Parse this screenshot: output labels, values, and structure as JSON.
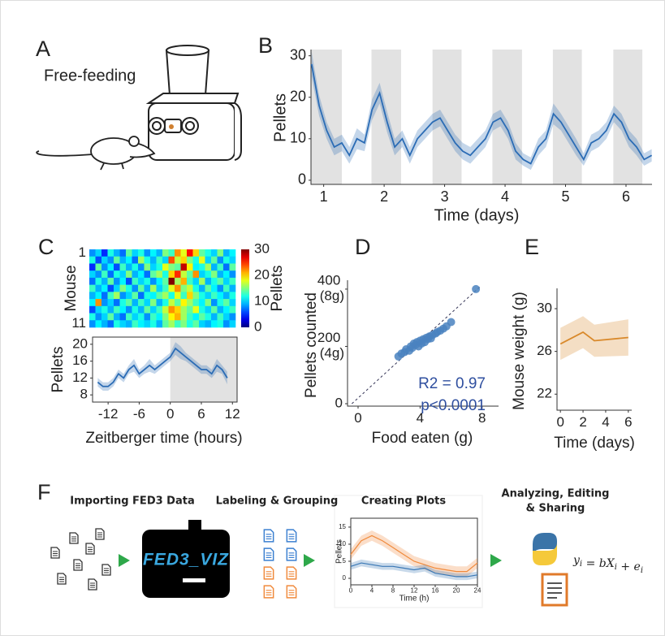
{
  "panel_labels": [
    "A",
    "B",
    "C",
    "D",
    "E",
    "F"
  ],
  "panel_a": {
    "caption": "Free-feeding"
  },
  "chart_data": [
    {
      "type": "line",
      "ylabel": "Pellets",
      "xlabel": "Time (days)",
      "x": [
        0.8,
        0.925,
        1.05,
        1.175,
        1.3,
        1.425,
        1.55,
        1.675,
        1.8,
        1.925,
        2.05,
        2.175,
        2.3,
        2.425,
        2.55,
        2.675,
        2.8,
        2.925,
        3.05,
        3.175,
        3.3,
        3.425,
        3.55,
        3.675,
        3.8,
        3.925,
        4.05,
        4.175,
        4.3,
        4.425,
        4.55,
        4.675,
        4.8,
        4.925,
        5.05,
        5.175,
        5.3,
        5.425,
        5.55,
        5.675,
        5.8,
        5.925,
        6.05,
        6.175,
        6.3,
        6.425
      ],
      "series": [
        {
          "color": "#2b6cb5",
          "values": [
            28,
            18,
            12,
            8,
            9,
            6,
            10,
            9,
            17,
            21,
            14,
            8,
            10,
            6,
            10,
            12,
            14,
            15,
            12,
            9,
            7,
            6,
            8,
            10,
            14,
            15,
            12,
            7,
            5,
            4,
            8,
            10,
            16,
            14,
            11,
            8,
            5,
            9,
            10,
            12,
            16,
            14,
            10,
            8,
            5,
            6
          ],
          "errors": [
            3,
            2.5,
            2,
            2,
            2,
            2,
            2.5,
            2,
            2.5,
            2.5,
            2.5,
            2,
            2,
            2,
            2,
            2,
            2,
            2,
            2,
            2,
            2,
            2,
            2,
            2,
            2,
            2,
            2,
            2,
            1.5,
            1.5,
            2,
            2,
            2.5,
            2,
            2,
            2,
            1.5,
            2,
            2,
            2,
            2,
            2,
            2,
            2,
            1.5,
            1.5
          ]
        }
      ],
      "shaded": [
        [
          0.79,
          1.3
        ],
        [
          1.79,
          2.28
        ],
        [
          2.8,
          3.28
        ],
        [
          3.79,
          4.28
        ],
        [
          4.79,
          5.27
        ],
        [
          5.79,
          6.27
        ]
      ],
      "xlim": [
        0.79,
        6.43
      ],
      "ylim": [
        -1,
        31.5
      ],
      "xticks": [
        1,
        2,
        3,
        4,
        5,
        6
      ],
      "yticks": [
        0,
        10,
        20,
        30
      ]
    },
    {
      "type": "heatmap",
      "ylabel": "Mouse",
      "categories": [
        "1",
        null,
        null,
        null,
        null,
        null,
        null,
        null,
        null,
        null,
        "11"
      ],
      "values": [
        [
          8,
          10,
          5,
          12,
          9,
          7,
          14,
          10,
          12,
          8,
          11,
          9,
          15,
          13,
          22,
          18,
          26,
          20,
          14,
          12,
          10,
          15,
          9,
          11
        ],
        [
          12,
          6,
          10,
          8,
          14,
          9,
          11,
          7,
          16,
          12,
          9,
          13,
          10,
          24,
          17,
          20,
          15,
          12,
          18,
          10,
          14,
          8,
          12,
          10
        ],
        [
          5,
          14,
          8,
          11,
          6,
          13,
          9,
          12,
          8,
          15,
          10,
          12,
          18,
          15,
          14,
          28,
          19,
          11,
          12,
          16,
          9,
          13,
          7,
          14
        ],
        [
          10,
          8,
          13,
          7,
          12,
          10,
          15,
          9,
          11,
          7,
          14,
          16,
          12,
          20,
          25,
          17,
          14,
          22,
          10,
          12,
          15,
          9,
          11,
          8
        ],
        [
          7,
          12,
          9,
          14,
          8,
          11,
          6,
          13,
          10,
          12,
          8,
          11,
          14,
          30,
          16,
          21,
          13,
          10,
          16,
          9,
          12,
          14,
          10,
          13
        ],
        [
          13,
          9,
          11,
          6,
          10,
          15,
          12,
          8,
          14,
          9,
          16,
          10,
          13,
          18,
          22,
          15,
          17,
          12,
          9,
          14,
          11,
          8,
          13,
          9
        ],
        [
          9,
          11,
          7,
          13,
          16,
          8,
          10,
          14,
          7,
          12,
          11,
          14,
          16,
          12,
          18,
          13,
          20,
          15,
          12,
          10,
          13,
          11,
          9,
          12
        ],
        [
          11,
          22,
          8,
          10,
          7,
          12,
          14,
          9,
          13,
          10,
          15,
          9,
          12,
          17,
          14,
          19,
          16,
          13,
          11,
          15,
          8,
          12,
          14,
          10
        ],
        [
          6,
          10,
          12,
          9,
          13,
          11,
          8,
          12,
          9,
          14,
          10,
          13,
          17,
          22,
          20,
          16,
          14,
          18,
          12,
          10,
          14,
          9,
          11,
          13
        ],
        [
          12,
          8,
          10,
          14,
          9,
          7,
          13,
          10,
          12,
          8,
          13,
          11,
          15,
          19,
          21,
          16,
          13,
          11,
          14,
          12,
          9,
          13,
          10,
          8
        ],
        [
          8,
          11,
          9,
          7,
          12,
          10,
          9,
          13,
          11,
          10,
          12,
          9,
          14,
          16,
          13,
          15,
          12,
          14,
          10,
          9,
          11,
          12,
          8,
          10
        ]
      ],
      "colormap": "jet",
      "zlim": [
        0,
        30
      ],
      "zticks": [
        0,
        10,
        20,
        30
      ],
      "colorbar_label": "Pellets"
    },
    {
      "type": "line",
      "ylabel": "Pellets",
      "xlabel": "Zeitberger time (hours)",
      "x": [
        -14,
        -13,
        -12,
        -11,
        -10,
        -9,
        -8,
        -7,
        -6,
        -5,
        -4,
        -3,
        -2,
        -1,
        0,
        1,
        2,
        3,
        4,
        5,
        6,
        7,
        8,
        9,
        10,
        11
      ],
      "series": [
        {
          "color": "#2b6cb5",
          "values": [
            11,
            10,
            10,
            11,
            13,
            12,
            14,
            15,
            13,
            14,
            15,
            14,
            15,
            16,
            17,
            19,
            18,
            17,
            16,
            15,
            14,
            14,
            13,
            15,
            14,
            12
          ],
          "errors": [
            1,
            1,
            1,
            1,
            1,
            1,
            1,
            1.5,
            1,
            1,
            1.5,
            1,
            1,
            1,
            1,
            1.5,
            1.5,
            1,
            1,
            1,
            1,
            1,
            1,
            1.5,
            1,
            1.5
          ]
        }
      ],
      "shaded": [
        [
          0,
          12.9
        ]
      ],
      "xlim": [
        -15,
        12.9
      ],
      "ylim": [
        6.3,
        21.7
      ],
      "xticks": [
        -12,
        -6,
        0,
        6,
        12
      ],
      "yticks": [
        8,
        12,
        16,
        20
      ]
    },
    {
      "type": "scatter",
      "ylabel": "Pellets counted",
      "xlabel": "Food eaten (g)",
      "x": [
        2.6,
        2.8,
        3.0,
        3.1,
        3.3,
        3.4,
        3.5,
        3.6,
        3.7,
        3.8,
        3.9,
        4.0,
        4.1,
        4.2,
        4.3,
        4.4,
        4.5,
        4.6,
        4.7,
        4.8,
        5.0,
        5.1,
        5.3,
        5.5,
        5.7,
        6.0,
        7.6
      ],
      "series": [
        {
          "color": "#4a82c0",
          "values": [
            165,
            175,
            180,
            190,
            185,
            200,
            195,
            210,
            205,
            215,
            200,
            220,
            210,
            225,
            215,
            230,
            225,
            235,
            228,
            240,
            245,
            250,
            255,
            262,
            270,
            285,
            400
          ]
        }
      ],
      "fit_line": {
        "x": [
          -0.4,
          7.9
        ],
        "y": [
          0,
          410
        ]
      },
      "annotations": [
        "R2 = 0.97",
        "p<0.0001"
      ],
      "annotation_color": "#2f4f9f",
      "xlim": [
        -0.68,
        9.06
      ],
      "ylim": [
        -8.5,
        431
      ],
      "xticks": [
        0,
        4,
        8
      ],
      "yticks": [
        0,
        {
          "value": 200,
          "label": "200 (4g)"
        },
        {
          "value": 400,
          "label": "400 (8g)"
        }
      ]
    },
    {
      "type": "line",
      "ylabel": "Mouse weight (g)",
      "xlabel": "Time (days)",
      "x": [
        0,
        2,
        3,
        6
      ],
      "series": [
        {
          "color": "#d9892b",
          "values": [
            26.7,
            27.8,
            27,
            27.3
          ],
          "errors": [
            1.5,
            1.5,
            1.5,
            1.7
          ]
        }
      ],
      "xlim": [
        -0.3,
        6.3
      ],
      "ylim": [
        20.5,
        31.9
      ],
      "xticks": [
        0,
        2,
        4,
        6
      ],
      "yticks": [
        22,
        26,
        30
      ]
    },
    {
      "type": "line",
      "ylabel": "Pellets",
      "xlabel": "Time (h)",
      "x": [
        0,
        2,
        4,
        6,
        8,
        10,
        12,
        14,
        16,
        18,
        20,
        22,
        24
      ],
      "series": [
        {
          "color": "#f08a3c",
          "values": [
            7,
            11,
            12.5,
            11,
            9,
            7,
            5,
            4,
            3,
            2.5,
            2,
            2,
            4.5
          ],
          "errors": [
            1.5,
            1.5,
            1.5,
            1.5,
            1.5,
            1.5,
            1.5,
            1.5,
            1.5,
            1.5,
            1.5,
            1.5,
            1.5
          ]
        },
        {
          "color": "#3a78b5",
          "values": [
            3.5,
            4.5,
            4,
            3.5,
            3.5,
            3,
            2.5,
            3,
            1.5,
            1,
            0.5,
            0.5,
            1
          ],
          "errors": [
            1,
            1,
            1,
            1,
            1,
            1,
            1,
            1,
            1,
            1,
            1,
            1,
            1
          ]
        }
      ],
      "xlim": [
        0,
        24
      ],
      "ylim": [
        -1.9,
        17.6
      ],
      "xticks": [
        0,
        4,
        8,
        12,
        16,
        20,
        24
      ],
      "yticks": [
        0,
        5,
        10,
        15
      ]
    }
  ],
  "panel_f": {
    "steps": [
      [
        "Importing FED3 Data"
      ],
      [
        "Labeling & Grouping"
      ],
      [
        "Creating Plots"
      ],
      [
        "Analyzing, Editing",
        "& Sharing"
      ]
    ],
    "logo": "FED3_VIZ",
    "equation": [
      {
        "text": "y",
        "sub": "i"
      },
      {
        "text": " = b"
      },
      {
        "text": "X",
        "sub": "i"
      },
      {
        "text": " + "
      },
      {
        "text": "e",
        "sub": "i"
      }
    ]
  }
}
